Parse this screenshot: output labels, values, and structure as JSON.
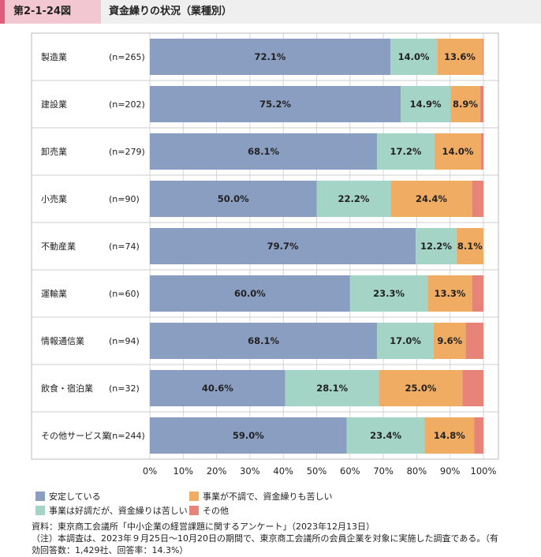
{
  "header": {
    "figure_number": "第2-1-24図",
    "title": "資金繰りの状況（業種別）"
  },
  "colors": {
    "series": [
      "#8a9ec2",
      "#a4d4c6",
      "#f1ac64",
      "#e8837a"
    ],
    "grid": "#cccccc",
    "frame": "#bbbbbb"
  },
  "chart_data": {
    "type": "bar",
    "orientation": "horizontal",
    "stacked": true,
    "categories": [
      "製造業",
      "建設業",
      "卸売業",
      "小売業",
      "不動産業",
      "運輸業",
      "情報通信業",
      "飲食・宿泊業",
      "その他サービス業"
    ],
    "sample_sizes": [
      "(n=265)",
      "(n=202)",
      "(n=279)",
      "(n=90)",
      "(n=74)",
      "(n=60)",
      "(n=94)",
      "(n=32)",
      "(n=244)"
    ],
    "series": [
      {
        "name": "安定している",
        "values": [
          72.1,
          75.2,
          68.1,
          50.0,
          79.7,
          60.0,
          68.1,
          40.6,
          59.0
        ]
      },
      {
        "name": "事業は好調だが、資金繰りは苦しい",
        "values": [
          14.0,
          14.9,
          17.2,
          22.2,
          12.2,
          23.3,
          17.0,
          28.1,
          23.4
        ]
      },
      {
        "name": "事業が不調で、資金繰りも苦しい",
        "values": [
          13.6,
          8.9,
          14.0,
          24.4,
          8.1,
          13.3,
          9.6,
          25.0,
          14.8
        ]
      },
      {
        "name": "その他",
        "values": [
          0.3,
          1.0,
          0.7,
          3.4,
          0.0,
          3.4,
          5.3,
          6.3,
          2.8
        ]
      }
    ],
    "value_labels": [
      [
        "72.1%",
        "14.0%",
        "13.6%",
        ""
      ],
      [
        "75.2%",
        "14.9%",
        "8.9%",
        ""
      ],
      [
        "68.1%",
        "17.2%",
        "14.0%",
        ""
      ],
      [
        "50.0%",
        "22.2%",
        "24.4%",
        ""
      ],
      [
        "79.7%",
        "12.2%",
        "8.1%",
        ""
      ],
      [
        "60.0%",
        "23.3%",
        "13.3%",
        ""
      ],
      [
        "68.1%",
        "17.0%",
        "9.6%",
        ""
      ],
      [
        "40.6%",
        "28.1%",
        "25.0%",
        ""
      ],
      [
        "59.0%",
        "23.4%",
        "14.8%",
        ""
      ]
    ],
    "x_ticks": [
      "0%",
      "10%",
      "20%",
      "30%",
      "40%",
      "50%",
      "60%",
      "70%",
      "80%",
      "90%",
      "100%"
    ],
    "xlim": [
      0,
      100
    ],
    "grid": true,
    "legend_position": "bottom"
  },
  "legend": {
    "items": [
      "安定している",
      "事業が不調で、資金繰りも苦しい",
      "事業は好調だが、資金繰りは苦しい",
      "その他"
    ]
  },
  "notes": {
    "source": "資料：東京商工会議所「中小企業の経営課題に関するアンケート」（2023年12月13日）",
    "note_line1": "（注）本調査は、2023年９月25日～10月20日の期間で、東京商工会議所の会員企業を対象に実施した調査である。（有",
    "note_line2": "効回答数：1,429社、回答率：14.3%）"
  }
}
